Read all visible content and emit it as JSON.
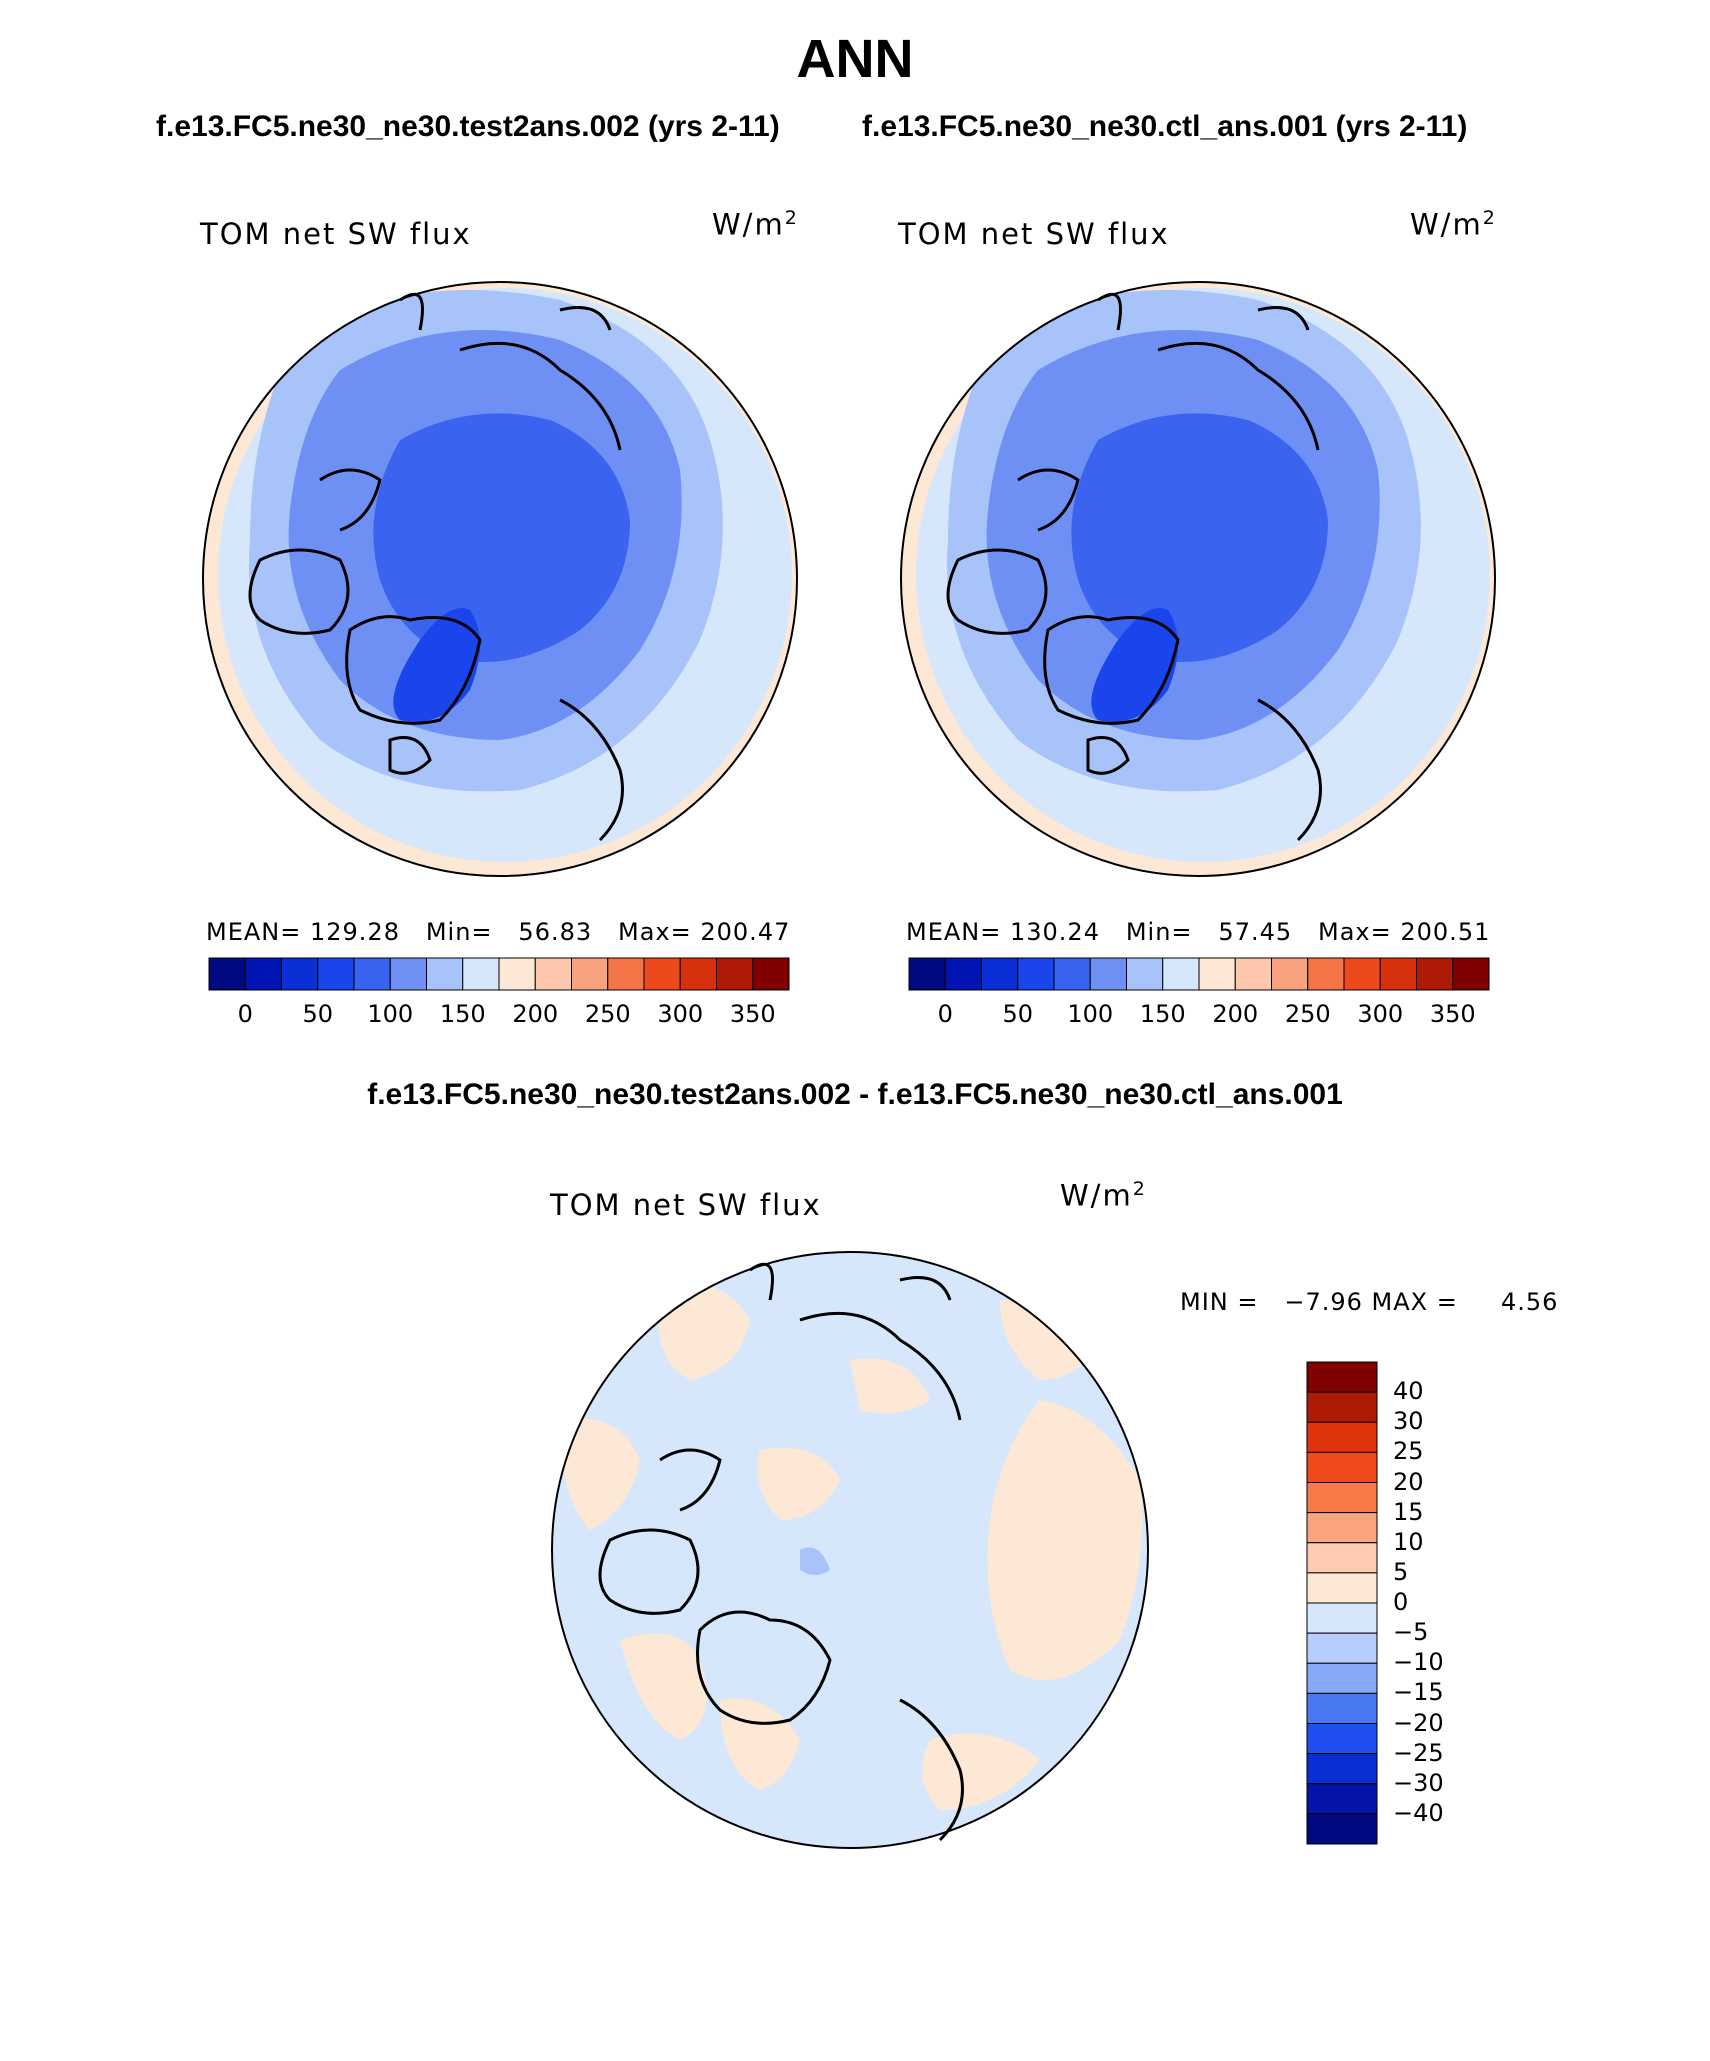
{
  "title": "ANN",
  "panels": [
    {
      "subtitle": "f.e13.FC5.ne30_ne30.test2ans.002 (yrs 2-11)",
      "label": "TOM net SW flux",
      "units_base": "W/m",
      "units_exp": "2",
      "stats": "MEAN= 129.28   Min=   56.83   Max= 200.47",
      "colorbar": {
        "colors": [
          "#000a80",
          "#0014b4",
          "#0b2ed7",
          "#1a45ec",
          "#3a64f0",
          "#6e90f5",
          "#a8c3fa",
          "#d6e7fc",
          "#fde8d6",
          "#fcc7ad",
          "#f8a27f",
          "#f47548",
          "#ec4a1c",
          "#d6300c",
          "#ae1a06",
          "#800000"
        ],
        "ticks": [
          "0",
          "50",
          "100",
          "150",
          "200",
          "250",
          "300",
          "350"
        ]
      }
    },
    {
      "subtitle": "f.e13.FC5.ne30_ne30.ctl_ans.001 (yrs 2-11)",
      "label": "TOM net SW flux",
      "units_base": "W/m",
      "units_exp": "2",
      "stats": "MEAN= 130.24   Min=   57.45   Max= 200.51",
      "colorbar": {
        "colors": [
          "#000a80",
          "#0014b4",
          "#0b2ed7",
          "#1a45ec",
          "#3a64f0",
          "#6e90f5",
          "#a8c3fa",
          "#d6e7fc",
          "#fde8d6",
          "#fcc7ad",
          "#f8a27f",
          "#f47548",
          "#ec4a1c",
          "#d6300c",
          "#ae1a06",
          "#800000"
        ],
        "ticks": [
          "0",
          "50",
          "100",
          "150",
          "200",
          "250",
          "300",
          "350"
        ]
      }
    }
  ],
  "difference": {
    "title": "f.e13.FC5.ne30_ne30.test2ans.002 - f.e13.FC5.ne30_ne30.ctl_ans.001",
    "label": "TOM net SW flux",
    "units_base": "W/m",
    "units_exp": "2",
    "stats": "MIN =   −7.96 MAX =     4.56",
    "colorbar": {
      "colors": [
        "#800000",
        "#ae1a06",
        "#e0330c",
        "#f04a1c",
        "#f87a48",
        "#fba580",
        "#fccbb0",
        "#fde8d6",
        "#d6e7fc",
        "#b6cdfb",
        "#87a9f7",
        "#4a78f2",
        "#1f4ff0",
        "#0b2ed7",
        "#0514a8",
        "#000a80"
      ],
      "ticks": [
        "40",
        "30",
        "25",
        "20",
        "15",
        "10",
        "5",
        "0",
        "−5",
        "−10",
        "−15",
        "−20",
        "−25",
        "−30",
        "−40"
      ]
    }
  },
  "colors": {
    "land_outline": "#000000",
    "very_low": "#1a45ec",
    "low": "#3a64f0",
    "mid": "#6e90f5",
    "light": "#a8c3fa",
    "pale": "#d6e7fc",
    "warm": "#fde8d6"
  }
}
